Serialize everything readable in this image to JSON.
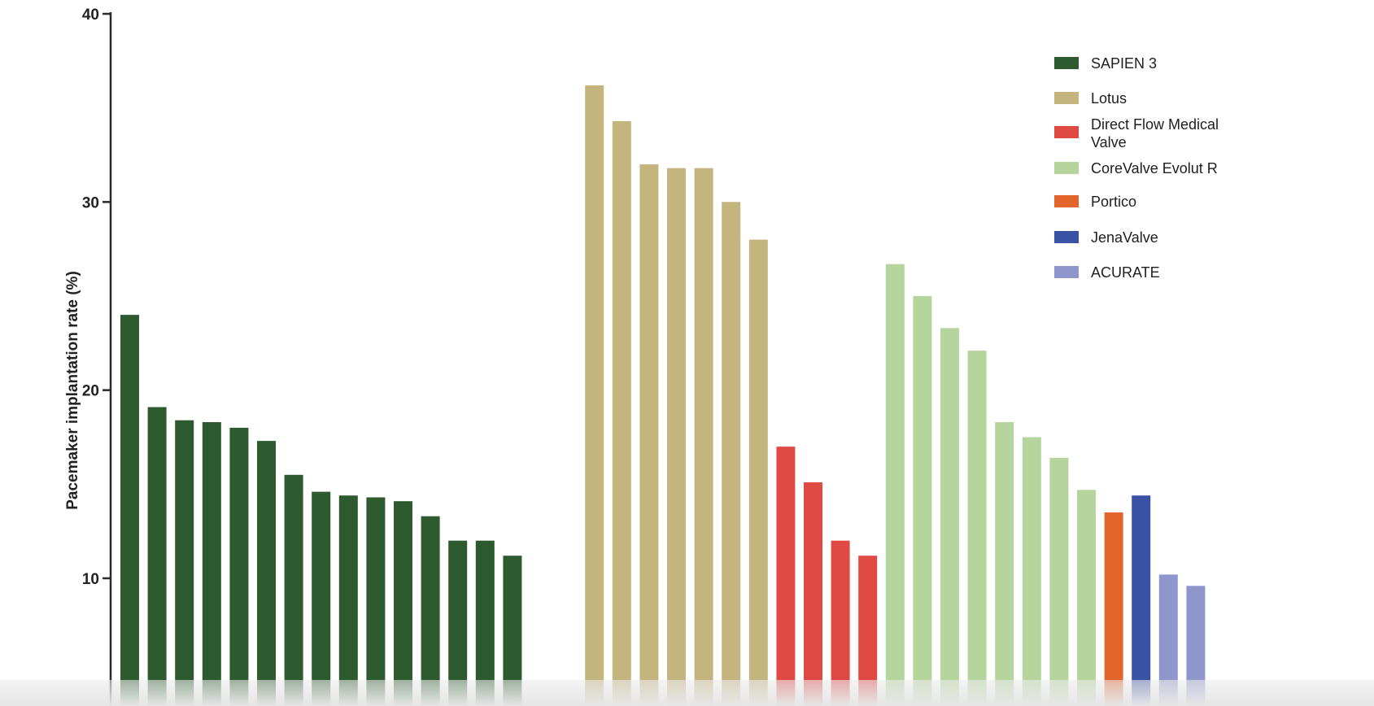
{
  "chart_data": {
    "type": "bar",
    "ylabel": "Pacemaker implantation rate (%)",
    "xlabel": "",
    "ylim": [
      0,
      40
    ],
    "yticks": [
      10,
      20,
      30,
      40
    ],
    "grid": false,
    "legend_position": "top-right",
    "series": [
      {
        "name": "SAPIEN 3",
        "color": "#2e5a30",
        "values": [
          24.0,
          19.1,
          18.4,
          18.3,
          18.0,
          17.3,
          15.5,
          14.6,
          14.4,
          14.3,
          14.1,
          13.3,
          12.0,
          12.0,
          11.2
        ]
      },
      {
        "name": "Lotus",
        "color": "#c4b47e",
        "values": [
          36.2,
          34.3,
          32.0,
          31.8,
          31.8,
          30.0,
          28.0
        ]
      },
      {
        "name": "Direct Flow Medical Valve",
        "color": "#e04a45",
        "values": [
          17.0,
          15.1,
          12.0,
          11.2
        ]
      },
      {
        "name": "CoreValve Evolut R",
        "color": "#b5d59c",
        "values": [
          26.7,
          25.0,
          23.3,
          22.1,
          18.3,
          17.5,
          16.4,
          14.7
        ]
      },
      {
        "name": "Portico",
        "color": "#e3652b",
        "values": [
          13.5
        ]
      },
      {
        "name": "JenaValve",
        "color": "#3a52a6",
        "values": [
          14.4
        ]
      },
      {
        "name": "ACURATE",
        "color": "#8f96cc",
        "values": [
          10.2,
          9.6
        ]
      }
    ]
  }
}
